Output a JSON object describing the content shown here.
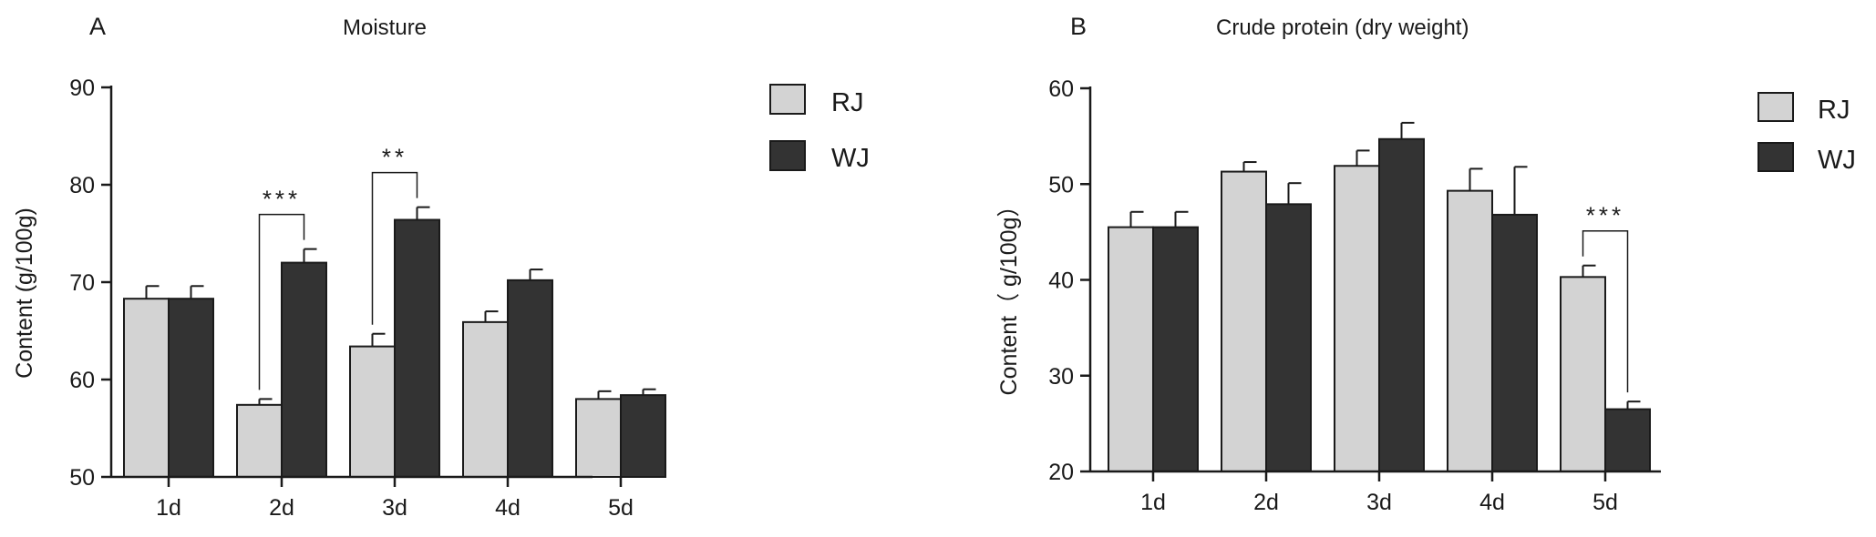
{
  "chart_data": [
    {
      "type": "bar",
      "panel_label": "A",
      "title": "Moisture",
      "xlabel": "",
      "ylabel": "Content (g/100g)",
      "ylim": [
        50,
        90
      ],
      "yticks": [
        50,
        60,
        70,
        80,
        90
      ],
      "categories": [
        "1d",
        "2d",
        "3d",
        "4d",
        "5d"
      ],
      "series": [
        {
          "name": "RJ",
          "color": "#d3d3d3",
          "values": [
            68.3,
            57.4,
            63.4,
            65.9,
            58.0
          ],
          "errors": [
            1.3,
            0.6,
            1.3,
            1.1,
            0.8
          ]
        },
        {
          "name": "WJ",
          "color": "#333333",
          "values": [
            68.3,
            72.0,
            76.4,
            70.2,
            58.4
          ],
          "errors": [
            1.3,
            1.4,
            1.3,
            1.1,
            0.6
          ]
        }
      ],
      "significance": [
        {
          "category": "2d",
          "label": "***"
        },
        {
          "category": "3d",
          "label": "**"
        }
      ],
      "legend_position": "right",
      "grid": false
    },
    {
      "type": "bar",
      "panel_label": "B",
      "title": "Crude protein (dry weight)",
      "xlabel": "",
      "ylabel": "Content（ g/100g）",
      "ylim": [
        20,
        60
      ],
      "yticks": [
        20,
        30,
        40,
        50,
        60
      ],
      "categories": [
        "1d",
        "2d",
        "3d",
        "4d",
        "5d"
      ],
      "series": [
        {
          "name": "RJ",
          "color": "#d3d3d3",
          "values": [
            45.5,
            51.3,
            51.9,
            49.3,
            40.3
          ],
          "errors": [
            1.6,
            1.0,
            1.6,
            2.3,
            1.2
          ]
        },
        {
          "name": "WJ",
          "color": "#333333",
          "values": [
            45.5,
            47.9,
            54.7,
            46.8,
            26.5
          ],
          "errors": [
            1.6,
            2.2,
            1.7,
            5.0,
            0.8
          ]
        }
      ],
      "significance": [
        {
          "category": "5d",
          "label": "***"
        }
      ],
      "legend_position": "right",
      "grid": false
    }
  ]
}
